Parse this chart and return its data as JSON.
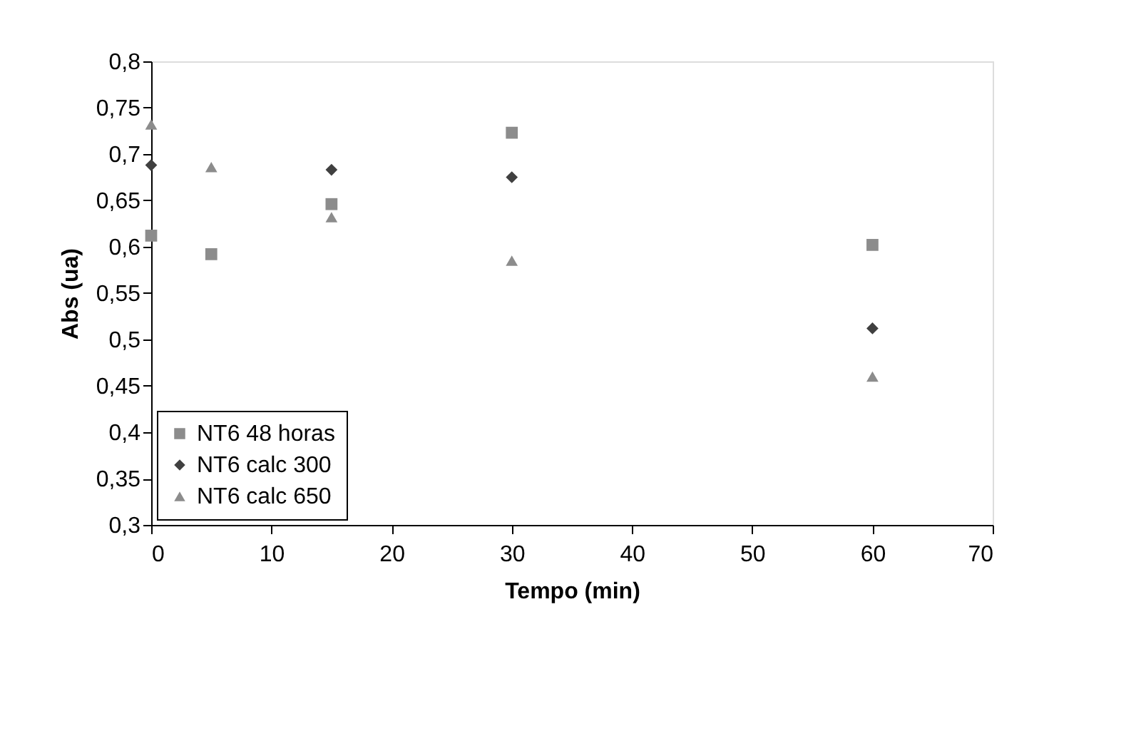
{
  "chart_data": {
    "type": "scatter",
    "xlabel": "Tempo (min)",
    "ylabel": "Abs (ua)",
    "x": [
      0,
      5,
      15,
      30,
      60
    ],
    "series": [
      {
        "name": "NT6 48 horas",
        "color": "#8c8c8c",
        "marker": "square",
        "values": [
          0.612,
          0.592,
          0.646,
          0.723,
          0.602
        ]
      },
      {
        "name": "NT6 calc 300",
        "color": "#404040",
        "marker": "diamond",
        "values": [
          0.688,
          null,
          0.683,
          0.675,
          0.512
        ]
      },
      {
        "name": "NT6 calc 650",
        "color": "#8c8c8c",
        "marker": "triangle",
        "values": [
          0.732,
          0.686,
          0.632,
          0.585,
          0.46
        ]
      }
    ],
    "xlim": [
      0,
      70
    ],
    "xticks": [
      0,
      10,
      20,
      30,
      40,
      50,
      60,
      70
    ],
    "ylim": [
      0.3,
      0.8
    ],
    "yticks": [
      {
        "value": 0.3,
        "label": "0,3"
      },
      {
        "value": 0.35,
        "label": "0,35"
      },
      {
        "value": 0.4,
        "label": "0,4"
      },
      {
        "value": 0.45,
        "label": "0,45"
      },
      {
        "value": 0.5,
        "label": "0,5"
      },
      {
        "value": 0.55,
        "label": "0,55"
      },
      {
        "value": 0.6,
        "label": "0,6"
      },
      {
        "value": 0.65,
        "label": "0,65"
      },
      {
        "value": 0.7,
        "label": "0,7"
      },
      {
        "value": 0.75,
        "label": "0,75"
      },
      {
        "value": 0.8,
        "label": "0,8"
      }
    ],
    "grid": false,
    "legend": "bottom left"
  }
}
